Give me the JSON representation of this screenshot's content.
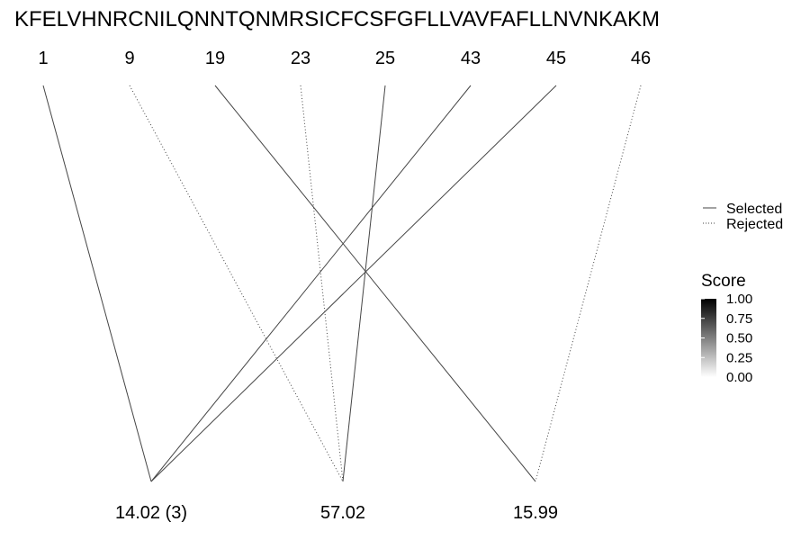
{
  "sequence": "KFELVHNRCNILQNNTQNMRSICFCSFGFLLVAVFAFLLNVNKAKM",
  "positions": [
    "1",
    "9",
    "19",
    "23",
    "25",
    "43",
    "45",
    "46"
  ],
  "masses": [
    "14.02 (3)",
    "57.02",
    "15.99"
  ],
  "links": [
    {
      "from": 0,
      "to": 0,
      "status": "selected",
      "score": 0.7
    },
    {
      "from": 1,
      "to": 1,
      "status": "rejected",
      "score": 0.7
    },
    {
      "from": 2,
      "to": 2,
      "status": "selected",
      "score": 0.7
    },
    {
      "from": 3,
      "to": 1,
      "status": "rejected",
      "score": 0.7
    },
    {
      "from": 4,
      "to": 1,
      "status": "selected",
      "score": 0.7
    },
    {
      "from": 5,
      "to": 0,
      "status": "selected",
      "score": 0.7
    },
    {
      "from": 6,
      "to": 0,
      "status": "selected",
      "score": 0.7
    },
    {
      "from": 7,
      "to": 2,
      "status": "rejected",
      "score": 0.7
    }
  ],
  "legend": {
    "linetype": [
      {
        "label": "Selected",
        "style": "solid"
      },
      {
        "label": "Rejected",
        "style": "dotted"
      }
    ],
    "score": {
      "title": "Score",
      "ticks": [
        "1.00",
        "0.75",
        "0.50",
        "0.25",
        "0.00"
      ],
      "color_high": "#000000",
      "color_low": "#ffffff"
    }
  }
}
